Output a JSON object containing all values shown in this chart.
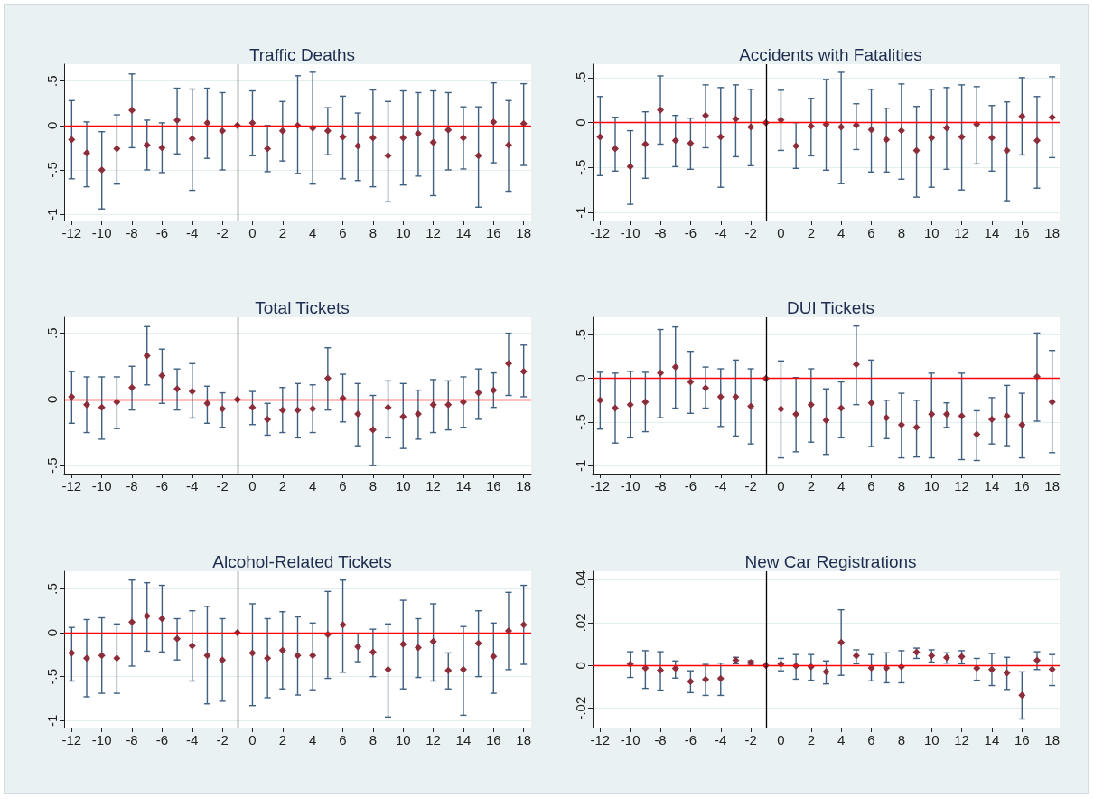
{
  "chart_data": [
    {
      "type": "scatter",
      "title": "Traffic Deaths",
      "color": "#8b2d3a",
      "marker": "diamond",
      "grid": "y",
      "x": [
        -12,
        -11,
        -10,
        -9,
        -8,
        -7,
        -6,
        -5,
        -4,
        -3,
        -2,
        -1,
        0,
        1,
        2,
        3,
        4,
        5,
        6,
        7,
        8,
        9,
        10,
        11,
        12,
        13,
        14,
        15,
        16,
        17,
        18
      ],
      "values": [
        -0.16,
        -0.31,
        -0.5,
        -0.26,
        0.17,
        -0.22,
        -0.25,
        0.06,
        -0.15,
        0.03,
        -0.06,
        0,
        0.03,
        -0.26,
        -0.06,
        0,
        -0.03,
        -0.06,
        -0.13,
        -0.23,
        -0.14,
        -0.34,
        -0.14,
        -0.09,
        -0.19,
        -0.05,
        -0.14,
        -0.34,
        0.04,
        -0.22,
        0.02
      ],
      "errors": [
        [
          -0.6,
          0.28
        ],
        [
          -0.69,
          0.04
        ],
        [
          -0.94,
          -0.07
        ],
        [
          -0.66,
          0.12
        ],
        [
          -0.25,
          0.58
        ],
        [
          -0.5,
          0.06
        ],
        [
          -0.53,
          0.03
        ],
        [
          -0.32,
          0.42
        ],
        [
          -0.73,
          0.41
        ],
        [
          -0.37,
          0.42
        ],
        [
          -0.5,
          0.37
        ],
        null,
        [
          -0.34,
          0.39
        ],
        [
          -0.52,
          0
        ],
        [
          -0.4,
          0.27
        ],
        [
          -0.54,
          0.56
        ],
        [
          -0.66,
          0.6
        ],
        [
          -0.33,
          0.2
        ],
        [
          -0.6,
          0.33
        ],
        [
          -0.62,
          0.14
        ],
        [
          -0.69,
          0.4
        ],
        [
          -0.86,
          0.27
        ],
        [
          -0.67,
          0.39
        ],
        [
          -0.57,
          0.37
        ],
        [
          -0.79,
          0.39
        ],
        [
          -0.5,
          0.37
        ],
        [
          -0.49,
          0.21
        ],
        [
          -0.92,
          0.21
        ],
        [
          -0.42,
          0.48
        ],
        [
          -0.74,
          0.28
        ],
        [
          -0.45,
          0.47
        ]
      ],
      "xlim": [
        -12.5,
        18.5
      ],
      "xticks": [
        -12,
        -10,
        -8,
        -6,
        -4,
        -2,
        0,
        2,
        4,
        6,
        8,
        10,
        12,
        14,
        16,
        18
      ],
      "ylim": [
        -1.07,
        0.69
      ],
      "yticks": [
        {
          "value": -1,
          "label": "-1"
        },
        {
          "value": -0.5,
          "label": "-.5"
        },
        {
          "value": 0,
          "label": "0"
        },
        {
          "value": 0.5,
          "label": ".5"
        }
      ],
      "ref_lines": [
        {
          "axis": "y",
          "value": 0,
          "color": "#ff0000"
        },
        {
          "axis": "x",
          "value": -1,
          "color": "#000000"
        }
      ]
    },
    {
      "type": "scatter",
      "title": "Accidents with Fatalities",
      "color": "#8b2d3a",
      "marker": "diamond",
      "grid": "y",
      "x": [
        -12,
        -11,
        -10,
        -9,
        -8,
        -7,
        -6,
        -5,
        -4,
        -3,
        -2,
        -1,
        0,
        1,
        2,
        3,
        4,
        5,
        6,
        7,
        8,
        9,
        10,
        11,
        12,
        13,
        14,
        15,
        16,
        17,
        18
      ],
      "values": [
        -0.16,
        -0.29,
        -0.49,
        -0.24,
        0.14,
        -0.2,
        -0.23,
        0.08,
        -0.16,
        0.04,
        -0.05,
        0,
        0.03,
        -0.26,
        -0.04,
        -0.02,
        -0.05,
        -0.03,
        -0.08,
        -0.19,
        -0.09,
        -0.31,
        -0.17,
        -0.06,
        -0.16,
        -0.02,
        -0.17,
        -0.31,
        0.07,
        -0.2,
        0.06
      ],
      "errors": [
        [
          -0.59,
          0.29
        ],
        [
          -0.54,
          0.06
        ],
        [
          -0.91,
          -0.09
        ],
        [
          -0.62,
          0.12
        ],
        [
          -0.24,
          0.52
        ],
        [
          -0.49,
          0.08
        ],
        [
          -0.52,
          0.05
        ],
        [
          -0.28,
          0.42
        ],
        [
          -0.72,
          0.39
        ],
        [
          -0.38,
          0.42
        ],
        [
          -0.48,
          0.37
        ],
        null,
        [
          -0.31,
          0.36
        ],
        [
          -0.51,
          0
        ],
        [
          -0.37,
          0.27
        ],
        [
          -0.53,
          0.48
        ],
        [
          -0.68,
          0.56
        ],
        [
          -0.3,
          0.21
        ],
        [
          -0.55,
          0.37
        ],
        [
          -0.55,
          0.16
        ],
        [
          -0.63,
          0.43
        ],
        [
          -0.83,
          0.18
        ],
        [
          -0.72,
          0.37
        ],
        [
          -0.52,
          0.39
        ],
        [
          -0.75,
          0.42
        ],
        [
          -0.46,
          0.4
        ],
        [
          -0.54,
          0.19
        ],
        [
          -0.87,
          0.23
        ],
        [
          -0.36,
          0.5
        ],
        [
          -0.73,
          0.29
        ],
        [
          -0.39,
          0.51
        ]
      ],
      "xlim": [
        -12.5,
        18.5
      ],
      "xticks": [
        -12,
        -10,
        -8,
        -6,
        -4,
        -2,
        0,
        2,
        4,
        6,
        8,
        10,
        12,
        14,
        16,
        18
      ],
      "ylim": [
        -1.09,
        0.65
      ],
      "yticks": [
        {
          "value": -1,
          "label": "-1"
        },
        {
          "value": -0.5,
          "label": "-.5"
        },
        {
          "value": 0,
          "label": "0"
        },
        {
          "value": 0.5,
          "label": ".5"
        }
      ],
      "ref_lines": [
        {
          "axis": "y",
          "value": 0,
          "color": "#ff0000"
        },
        {
          "axis": "x",
          "value": -1,
          "color": "#000000"
        }
      ]
    },
    {
      "type": "scatter",
      "title": "Total Tickets",
      "color": "#8b2d3a",
      "marker": "diamond",
      "grid": "y",
      "x": [
        -12,
        -11,
        -10,
        -9,
        -8,
        -7,
        -6,
        -5,
        -4,
        -3,
        -2,
        -1,
        0,
        1,
        2,
        3,
        4,
        5,
        6,
        7,
        8,
        9,
        10,
        11,
        12,
        13,
        14,
        15,
        16,
        17,
        18
      ],
      "values": [
        0.02,
        -0.04,
        -0.06,
        -0.02,
        0.09,
        0.33,
        0.18,
        0.08,
        0.06,
        -0.03,
        -0.07,
        0,
        -0.06,
        -0.15,
        -0.08,
        -0.08,
        -0.07,
        0.16,
        0.01,
        -0.11,
        -0.23,
        -0.06,
        -0.13,
        -0.11,
        -0.04,
        -0.04,
        -0.02,
        0.05,
        0.07,
        0.27,
        0.21
      ],
      "errors": [
        [
          -0.18,
          0.21
        ],
        [
          -0.25,
          0.17
        ],
        [
          -0.3,
          0.17
        ],
        [
          -0.22,
          0.17
        ],
        [
          -0.08,
          0.25
        ],
        [
          0.11,
          0.55
        ],
        [
          -0.03,
          0.38
        ],
        [
          -0.08,
          0.23
        ],
        [
          -0.14,
          0.27
        ],
        [
          -0.18,
          0.1
        ],
        [
          -0.21,
          0.05
        ],
        null,
        [
          -0.19,
          0.06
        ],
        [
          -0.27,
          -0.03
        ],
        [
          -0.25,
          0.09
        ],
        [
          -0.29,
          0.12
        ],
        [
          -0.25,
          0.11
        ],
        [
          -0.08,
          0.39
        ],
        [
          -0.17,
          0.19
        ],
        [
          -0.35,
          0.12
        ],
        [
          -0.5,
          0.03
        ],
        [
          -0.29,
          0.14
        ],
        [
          -0.37,
          0.12
        ],
        [
          -0.3,
          0.07
        ],
        [
          -0.25,
          0.15
        ],
        [
          -0.23,
          0.14
        ],
        [
          -0.21,
          0.17
        ],
        [
          -0.15,
          0.23
        ],
        [
          -0.06,
          0.2
        ],
        [
          0.03,
          0.5
        ],
        [
          0.02,
          0.41
        ]
      ],
      "xlim": [
        -12.5,
        18.5
      ],
      "xticks": [
        -12,
        -10,
        -8,
        -6,
        -4,
        -2,
        0,
        2,
        4,
        6,
        8,
        10,
        12,
        14,
        16,
        18
      ],
      "ylim": [
        -0.56,
        0.62
      ],
      "yticks": [
        {
          "value": -0.5,
          "label": "-.5"
        },
        {
          "value": 0,
          "label": "0"
        },
        {
          "value": 0.5,
          "label": ".5"
        }
      ],
      "ref_lines": [
        {
          "axis": "y",
          "value": 0,
          "color": "#ff0000"
        },
        {
          "axis": "x",
          "value": -1,
          "color": "#000000"
        }
      ]
    },
    {
      "type": "scatter",
      "title": "DUI Tickets",
      "color": "#8b2d3a",
      "marker": "diamond",
      "grid": "y",
      "x": [
        -12,
        -11,
        -10,
        -9,
        -8,
        -7,
        -6,
        -5,
        -4,
        -3,
        -2,
        -1,
        0,
        1,
        2,
        3,
        4,
        5,
        6,
        7,
        8,
        9,
        10,
        11,
        12,
        13,
        14,
        15,
        16,
        17,
        18
      ],
      "values": [
        -0.25,
        -0.34,
        -0.3,
        -0.27,
        0.06,
        0.13,
        -0.04,
        -0.11,
        -0.21,
        -0.21,
        -0.32,
        0,
        -0.35,
        -0.41,
        -0.3,
        -0.48,
        -0.34,
        0.16,
        -0.28,
        -0.45,
        -0.53,
        -0.56,
        -0.41,
        -0.41,
        -0.43,
        -0.64,
        -0.47,
        -0.43,
        -0.53,
        0.02,
        -0.27
      ],
      "errors": [
        [
          -0.58,
          0.07
        ],
        [
          -0.74,
          0.06
        ],
        [
          -0.68,
          0.08
        ],
        [
          -0.61,
          0.07
        ],
        [
          -0.45,
          0.56
        ],
        [
          -0.34,
          0.59
        ],
        [
          -0.4,
          0.31
        ],
        [
          -0.34,
          0.13
        ],
        [
          -0.55,
          0.11
        ],
        [
          -0.66,
          0.21
        ],
        [
          -0.75,
          0.11
        ],
        null,
        [
          -0.91,
          0.2
        ],
        [
          -0.84,
          0.01
        ],
        [
          -0.73,
          0.11
        ],
        [
          -0.87,
          -0.12
        ],
        [
          -0.68,
          -0.04
        ],
        [
          -0.3,
          0.6
        ],
        [
          -0.78,
          0.21
        ],
        [
          -0.69,
          -0.25
        ],
        [
          -0.91,
          -0.17
        ],
        [
          -0.9,
          -0.25
        ],
        [
          -0.91,
          0.06
        ],
        [
          -0.56,
          -0.28
        ],
        [
          -0.93,
          0.06
        ],
        [
          -0.94,
          -0.37
        ],
        [
          -0.75,
          -0.22
        ],
        [
          -0.77,
          -0.08
        ],
        [
          -0.91,
          -0.17
        ],
        [
          -0.49,
          0.52
        ],
        [
          -0.85,
          0.32
        ]
      ],
      "xlim": [
        -12.5,
        18.5
      ],
      "xticks": [
        -12,
        -10,
        -8,
        -6,
        -4,
        -2,
        0,
        2,
        4,
        6,
        8,
        10,
        12,
        14,
        16,
        18
      ],
      "ylim": [
        -1.09,
        0.7
      ],
      "yticks": [
        {
          "value": -1,
          "label": "-1"
        },
        {
          "value": -0.5,
          "label": "-.5"
        },
        {
          "value": 0,
          "label": "0"
        },
        {
          "value": 0.5,
          "label": ".5"
        }
      ],
      "ref_lines": [
        {
          "axis": "y",
          "value": 0,
          "color": "#ff0000"
        },
        {
          "axis": "x",
          "value": -1,
          "color": "#000000"
        }
      ]
    },
    {
      "type": "scatter",
      "title": "Alcohol-Related Tickets",
      "color": "#8b2d3a",
      "marker": "diamond",
      "grid": "y",
      "x": [
        -12,
        -11,
        -10,
        -9,
        -8,
        -7,
        -6,
        -5,
        -4,
        -3,
        -2,
        -1,
        0,
        1,
        2,
        3,
        4,
        5,
        6,
        7,
        8,
        9,
        10,
        11,
        12,
        13,
        14,
        15,
        16,
        17,
        18
      ],
      "values": [
        -0.23,
        -0.29,
        -0.26,
        -0.29,
        0.12,
        0.19,
        0.16,
        -0.07,
        -0.15,
        -0.26,
        -0.31,
        0,
        -0.23,
        -0.29,
        -0.2,
        -0.26,
        -0.26,
        -0.02,
        0.09,
        -0.16,
        -0.22,
        -0.42,
        -0.13,
        -0.17,
        -0.1,
        -0.43,
        -0.42,
        -0.12,
        -0.27,
        0.02,
        0.09
      ],
      "errors": [
        [
          -0.55,
          0.06
        ],
        [
          -0.73,
          0.15
        ],
        [
          -0.69,
          0.17
        ],
        [
          -0.69,
          0.1
        ],
        [
          -0.38,
          0.6
        ],
        [
          -0.21,
          0.57
        ],
        [
          -0.22,
          0.54
        ],
        [
          -0.31,
          0.16
        ],
        [
          -0.55,
          0.25
        ],
        [
          -0.81,
          0.3
        ],
        [
          -0.78,
          0.16
        ],
        null,
        [
          -0.83,
          0.33
        ],
        [
          -0.74,
          0.16
        ],
        [
          -0.64,
          0.24
        ],
        [
          -0.71,
          0.18
        ],
        [
          -0.65,
          0.11
        ],
        [
          -0.52,
          0.47
        ],
        [
          -0.45,
          0.6
        ],
        [
          -0.33,
          -0.01
        ],
        [
          -0.5,
          0.04
        ],
        [
          -0.96,
          0.1
        ],
        [
          -0.64,
          0.37
        ],
        [
          -0.51,
          0.16
        ],
        [
          -0.55,
          0.33
        ],
        [
          -0.64,
          -0.23
        ],
        [
          -0.94,
          0.07
        ],
        [
          -0.5,
          0.25
        ],
        [
          -0.69,
          0.11
        ],
        [
          -0.42,
          0.46
        ],
        [
          -0.36,
          0.54
        ]
      ],
      "xlim": [
        -12.5,
        18.5
      ],
      "xticks": [
        -12,
        -10,
        -8,
        -6,
        -4,
        -2,
        0,
        2,
        4,
        6,
        8,
        10,
        12,
        14,
        16,
        18
      ],
      "ylim": [
        -1.08,
        0.7
      ],
      "yticks": [
        {
          "value": -1,
          "label": "-1"
        },
        {
          "value": -0.5,
          "label": "-.5"
        },
        {
          "value": 0,
          "label": "0"
        },
        {
          "value": 0.5,
          "label": ".5"
        }
      ],
      "ref_lines": [
        {
          "axis": "y",
          "value": 0,
          "color": "#ff0000"
        },
        {
          "axis": "x",
          "value": -1,
          "color": "#000000"
        }
      ]
    },
    {
      "type": "scatter",
      "title": "New Car Registrations",
      "color": "#8b2d3a",
      "marker": "diamond",
      "grid": "y",
      "x": [
        -10,
        -9,
        -8,
        -7,
        -6,
        -5,
        -4,
        -3,
        -2,
        -1,
        0,
        1,
        2,
        3,
        4,
        5,
        6,
        7,
        8,
        9,
        10,
        11,
        12,
        13,
        14,
        15,
        16,
        17,
        18
      ],
      "values": [
        0.0006,
        -0.0013,
        -0.0022,
        -0.0014,
        -0.0075,
        -0.0065,
        -0.0061,
        0.0024,
        0.0014,
        0,
        0.0006,
        -0.0002,
        -0.0006,
        -0.0029,
        0.0108,
        0.0045,
        -0.0011,
        -0.0011,
        -0.0006,
        0.0062,
        0.0045,
        0.0037,
        0.0041,
        -0.0013,
        -0.0019,
        -0.0035,
        -0.0139,
        0.0024,
        -0.0018
      ],
      "errors": [
        [
          -0.0056,
          0.0064
        ],
        [
          -0.0107,
          0.0069
        ],
        [
          -0.0115,
          0.0064
        ],
        [
          -0.0059,
          0.0021
        ],
        [
          -0.0127,
          -0.0025
        ],
        [
          -0.014,
          0.0005
        ],
        [
          -0.014,
          0.0011
        ],
        [
          0.0008,
          0.0038
        ],
        [
          0.0005,
          0.0022
        ],
        null,
        [
          -0.0025,
          0.0033
        ],
        [
          -0.0064,
          0.0051
        ],
        [
          -0.0069,
          0.0051
        ],
        [
          -0.0086,
          0.0021
        ],
        [
          -0.0046,
          0.026
        ],
        [
          0.0008,
          0.0073
        ],
        [
          -0.0072,
          0.0051
        ],
        [
          -0.0081,
          0.0059
        ],
        [
          -0.0081,
          0.0069
        ],
        [
          0.0033,
          0.0081
        ],
        [
          0.0016,
          0.0073
        ],
        [
          0.0011,
          0.0059
        ],
        [
          0.0008,
          0.0069
        ],
        [
          -0.0069,
          0.0033
        ],
        [
          -0.0094,
          0.0056
        ],
        [
          -0.0112,
          0.0038
        ],
        [
          -0.025,
          -0.003
        ],
        [
          -0.0019,
          0.0064
        ],
        [
          -0.0094,
          0.0051
        ]
      ],
      "xlim": [
        -12.5,
        18.5
      ],
      "xticks": [
        -12,
        -10,
        -8,
        -6,
        -4,
        -2,
        0,
        2,
        4,
        6,
        8,
        10,
        12,
        14,
        16,
        18
      ],
      "ylim": [
        -0.029,
        0.044
      ],
      "yticks": [
        {
          "value": -0.02,
          "label": "-.02"
        },
        {
          "value": 0,
          "label": "0"
        },
        {
          "value": 0.02,
          "label": ".02"
        },
        {
          "value": 0.04,
          "label": ".04"
        }
      ],
      "ref_lines": [
        {
          "axis": "y",
          "value": 0,
          "color": "#ff0000"
        },
        {
          "axis": "x",
          "value": -1,
          "color": "#000000"
        }
      ]
    }
  ]
}
